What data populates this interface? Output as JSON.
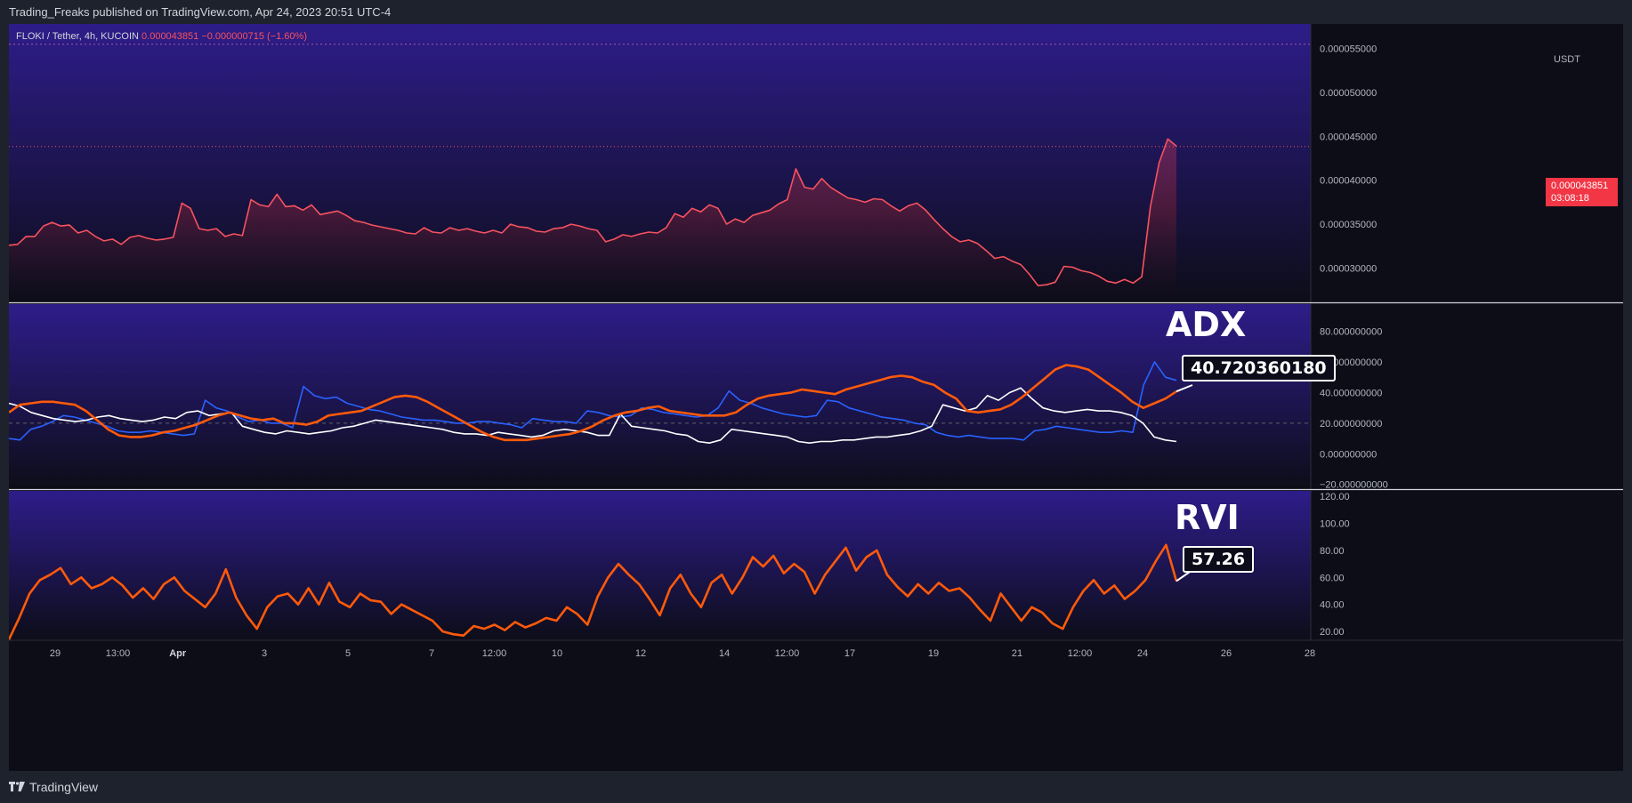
{
  "header": {
    "publish_text": "Trading_Freaks published on TradingView.com, Apr 24, 2023 20:51 UTC-4"
  },
  "footer": {
    "brand": "TradingView"
  },
  "legend": {
    "symbol": "FLOKI / Tether, 4h, KUCOIN",
    "price": "0.000043851",
    "change": "−0.000000715 (−1.60%)"
  },
  "price_axis": {
    "currency": "USDT",
    "tag_price": "0.000043851",
    "tag_countdown": "03:08:18"
  },
  "panels": {
    "adx": {
      "title": "ADX",
      "value_label": "40.720360180"
    },
    "rvi": {
      "title": "RVI",
      "value_label": "57.26"
    }
  },
  "colors": {
    "background": "#0d0d18",
    "gradient_top": "#2f1d8f",
    "price_line": "#f7525f",
    "adx_line": "#ff5a0a",
    "di_plus": "#2962ff",
    "di_minus": "#ffffff",
    "rvi_line": "#ff5a0a"
  },
  "chart_data": [
    {
      "type": "area",
      "name": "price",
      "y_ticks": [
        "0.000030000",
        "0.000035000",
        "0.000040000",
        "0.000045000",
        "0.000050000",
        "0.000055000"
      ],
      "ylim": [
        2.62e-05,
        5.78e-05
      ],
      "x_labels": [
        "29",
        "13:00",
        "Apr",
        "3",
        "5",
        "7",
        "12:00",
        "10",
        "12",
        "14",
        "12:00",
        "17",
        "19",
        "21",
        "12:00",
        "24",
        "26",
        "28"
      ],
      "last_value": 4.3851e-05,
      "values": [
        3.26e-05,
        3.27e-05,
        3.36e-05,
        3.36e-05,
        3.48e-05,
        3.52e-05,
        3.48e-05,
        3.49e-05,
        3.4e-05,
        3.43e-05,
        3.36e-05,
        3.31e-05,
        3.33e-05,
        3.27e-05,
        3.35e-05,
        3.37e-05,
        3.34e-05,
        3.32e-05,
        3.33e-05,
        3.35e-05,
        3.74e-05,
        3.68e-05,
        3.45e-05,
        3.43e-05,
        3.45e-05,
        3.36e-05,
        3.39e-05,
        3.37e-05,
        3.78e-05,
        3.72e-05,
        3.7e-05,
        3.84e-05,
        3.7e-05,
        3.71e-05,
        3.66e-05,
        3.72e-05,
        3.61e-05,
        3.63e-05,
        3.65e-05,
        3.6e-05,
        3.54e-05,
        3.52e-05,
        3.49e-05,
        3.47e-05,
        3.45e-05,
        3.43e-05,
        3.4e-05,
        3.39e-05,
        3.46e-05,
        3.41e-05,
        3.4e-05,
        3.46e-05,
        3.43e-05,
        3.45e-05,
        3.42e-05,
        3.4e-05,
        3.43e-05,
        3.4e-05,
        3.5e-05,
        3.47e-05,
        3.46e-05,
        3.42e-05,
        3.41e-05,
        3.45e-05,
        3.46e-05,
        3.5e-05,
        3.48e-05,
        3.45e-05,
        3.43e-05,
        3.3e-05,
        3.33e-05,
        3.38e-05,
        3.36e-05,
        3.39e-05,
        3.41e-05,
        3.4e-05,
        3.46e-05,
        3.62e-05,
        3.58e-05,
        3.68e-05,
        3.64e-05,
        3.72e-05,
        3.68e-05,
        3.5e-05,
        3.56e-05,
        3.52e-05,
        3.6e-05,
        3.63e-05,
        3.66e-05,
        3.73e-05,
        3.78e-05,
        4.13e-05,
        3.92e-05,
        3.9e-05,
        4.02e-05,
        3.92e-05,
        3.86e-05,
        3.8e-05,
        3.78e-05,
        3.75e-05,
        3.79e-05,
        3.78e-05,
        3.71e-05,
        3.65e-05,
        3.71e-05,
        3.74e-05,
        3.66e-05,
        3.55e-05,
        3.45e-05,
        3.36e-05,
        3.3e-05,
        3.32e-05,
        3.28e-05,
        3.2e-05,
        3.11e-05,
        3.13e-05,
        3.08e-05,
        3.04e-05,
        2.93e-05,
        2.8e-05,
        2.81e-05,
        2.84e-05,
        3.02e-05,
        3.01e-05,
        2.97e-05,
        2.95e-05,
        2.91e-05,
        2.85e-05,
        2.83e-05,
        2.87e-05,
        2.83e-05,
        2.9e-05,
        3.7e-05,
        4.2e-05,
        4.47e-05,
        4.39e-05
      ]
    },
    {
      "type": "line",
      "name": "adx",
      "y_ticks": [
        "80.000000000",
        "60.000000000",
        "40.000000000",
        "20.000000000",
        "0.000000000",
        "−20.000000000"
      ],
      "ylim": [
        -22.5,
        97.8
      ],
      "last_value": 40.72036018,
      "series": [
        {
          "values": [
            27,
            32,
            33,
            34,
            34,
            33,
            32,
            28,
            22,
            16,
            12,
            11,
            11,
            12,
            14,
            15,
            17,
            19,
            22,
            25,
            27,
            25,
            23,
            22,
            23,
            20,
            20,
            19,
            21,
            25,
            26,
            27,
            28,
            31,
            34,
            37,
            38,
            37,
            34,
            30,
            26,
            22,
            18,
            14,
            11,
            9,
            9,
            9,
            10,
            11,
            12,
            13,
            15,
            18,
            22,
            25,
            27,
            28,
            30,
            31,
            28,
            27,
            26,
            25,
            25,
            25,
            27,
            32,
            36,
            38,
            39,
            40,
            42,
            41,
            40,
            39,
            42,
            44,
            46,
            48,
            50,
            51,
            50,
            47,
            45,
            40,
            36,
            28,
            27,
            28,
            29,
            32,
            37,
            43,
            49,
            55,
            58,
            57,
            55,
            50,
            45,
            40,
            34,
            30,
            33,
            36,
            40.72
          ]
        },
        {
          "values": [
            10,
            9,
            16,
            18,
            21,
            25,
            24,
            22,
            20,
            18,
            15,
            14,
            14,
            15,
            14,
            13,
            12,
            13,
            35,
            30,
            28,
            24,
            21,
            22,
            20,
            20,
            17,
            44,
            38,
            36,
            37,
            33,
            31,
            29,
            28,
            26,
            24,
            23,
            22,
            22,
            21,
            20,
            20,
            21,
            21,
            20,
            19,
            17,
            23,
            22,
            21,
            21,
            20,
            28,
            27,
            25,
            24,
            25,
            30,
            29,
            27,
            26,
            25,
            24,
            25,
            30,
            41,
            35,
            33,
            30,
            28,
            26,
            25,
            24,
            25,
            35,
            34,
            30,
            28,
            26,
            24,
            23,
            22,
            20,
            19,
            14,
            12,
            11,
            12,
            11,
            10,
            10,
            10,
            9,
            15,
            16,
            18,
            17,
            16,
            15,
            14,
            14,
            15,
            14,
            45,
            60,
            50,
            48
          ]
        },
        {
          "values": [
            33,
            31,
            27,
            25,
            23,
            22,
            21,
            22,
            24,
            25,
            23,
            22,
            21,
            22,
            24,
            23,
            27,
            28,
            25,
            26,
            27,
            18,
            16,
            14,
            13,
            15,
            14,
            13,
            14,
            15,
            17,
            18,
            20,
            22,
            21,
            20,
            19,
            18,
            17,
            16,
            14,
            13,
            13,
            12,
            14,
            13,
            12,
            11,
            12,
            15,
            16,
            15,
            14,
            12,
            12,
            26,
            18,
            17,
            16,
            15,
            13,
            12,
            8,
            7,
            9,
            16,
            15,
            14,
            13,
            12,
            11,
            8,
            7,
            8,
            8,
            9,
            9,
            10,
            11,
            11,
            12,
            13,
            15,
            18,
            32,
            30,
            28,
            30,
            38,
            35,
            40,
            43,
            36,
            30,
            28,
            27,
            28,
            29,
            28,
            28,
            27,
            25,
            20,
            11,
            9,
            8
          ]
        }
      ]
    },
    {
      "type": "line",
      "name": "rvi",
      "y_ticks": [
        "120.00",
        "100.00",
        "80.00",
        "60.00",
        "40.00",
        "20.00"
      ],
      "ylim": [
        13.5,
        124
      ],
      "last_value": 57.26,
      "values": [
        14,
        30,
        48,
        58,
        62,
        67,
        55,
        60,
        52,
        55,
        60,
        54,
        45,
        52,
        44,
        55,
        60,
        50,
        44,
        38,
        48,
        66,
        45,
        32,
        22,
        38,
        46,
        48,
        40,
        52,
        40,
        56,
        42,
        38,
        48,
        43,
        42,
        33,
        40,
        36,
        32,
        28,
        20,
        18,
        17,
        24,
        22,
        25,
        21,
        27,
        23,
        26,
        30,
        28,
        38,
        33,
        25,
        46,
        60,
        70,
        62,
        55,
        44,
        32,
        52,
        62,
        48,
        38,
        56,
        62,
        48,
        60,
        75,
        68,
        76,
        63,
        70,
        64,
        48,
        62,
        72,
        82,
        65,
        75,
        80,
        62,
        53,
        46,
        55,
        48,
        56,
        50,
        52,
        45,
        36,
        28,
        48,
        38,
        28,
        38,
        34,
        26,
        22,
        38,
        50,
        58,
        48,
        54,
        44,
        50,
        58,
        72,
        84,
        57.26
      ]
    }
  ]
}
